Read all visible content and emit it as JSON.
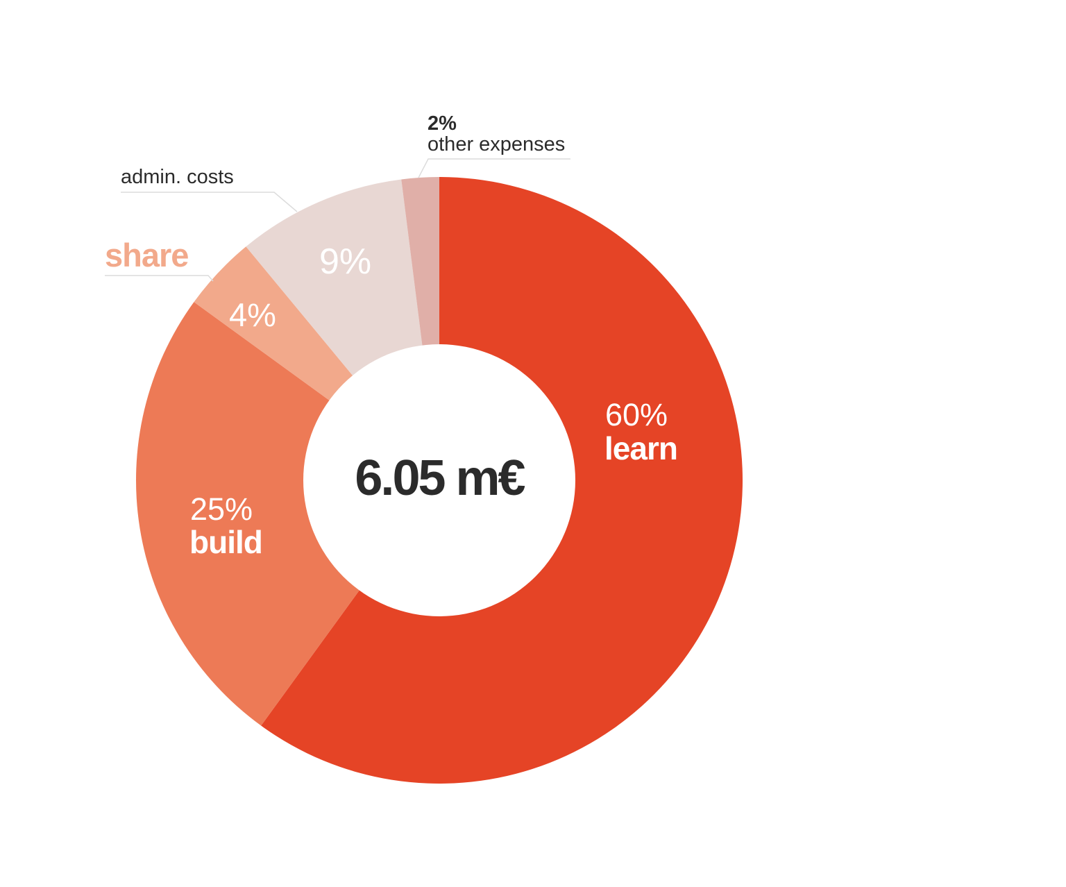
{
  "chart_data": {
    "type": "pie",
    "variant": "donut",
    "center_label": "6.05 m€",
    "slices": [
      {
        "key": "learn",
        "pct_label": "60%",
        "name_label": "learn",
        "value": 60,
        "color": "#e54426"
      },
      {
        "key": "build",
        "pct_label": "25%",
        "name_label": "build",
        "value": 25,
        "color": "#ed7a56"
      },
      {
        "key": "share",
        "pct_label": "4%",
        "name_label": "share",
        "value": 4,
        "color": "#f2a98b"
      },
      {
        "key": "admin",
        "pct_label": "9%",
        "name_label": "admin. costs",
        "value": 9,
        "color": "#e8d7d3"
      },
      {
        "key": "other",
        "pct_label": "2%",
        "name_label": "other expenses",
        "value": 2,
        "color": "#e0afa8"
      }
    ],
    "colors": {
      "center_text": "#2b2b2b",
      "inside_label": "#ffffff",
      "share_label": "#f2a98b",
      "callout_text": "#2b2b2b",
      "leader_line": "#dcdcdc"
    }
  }
}
